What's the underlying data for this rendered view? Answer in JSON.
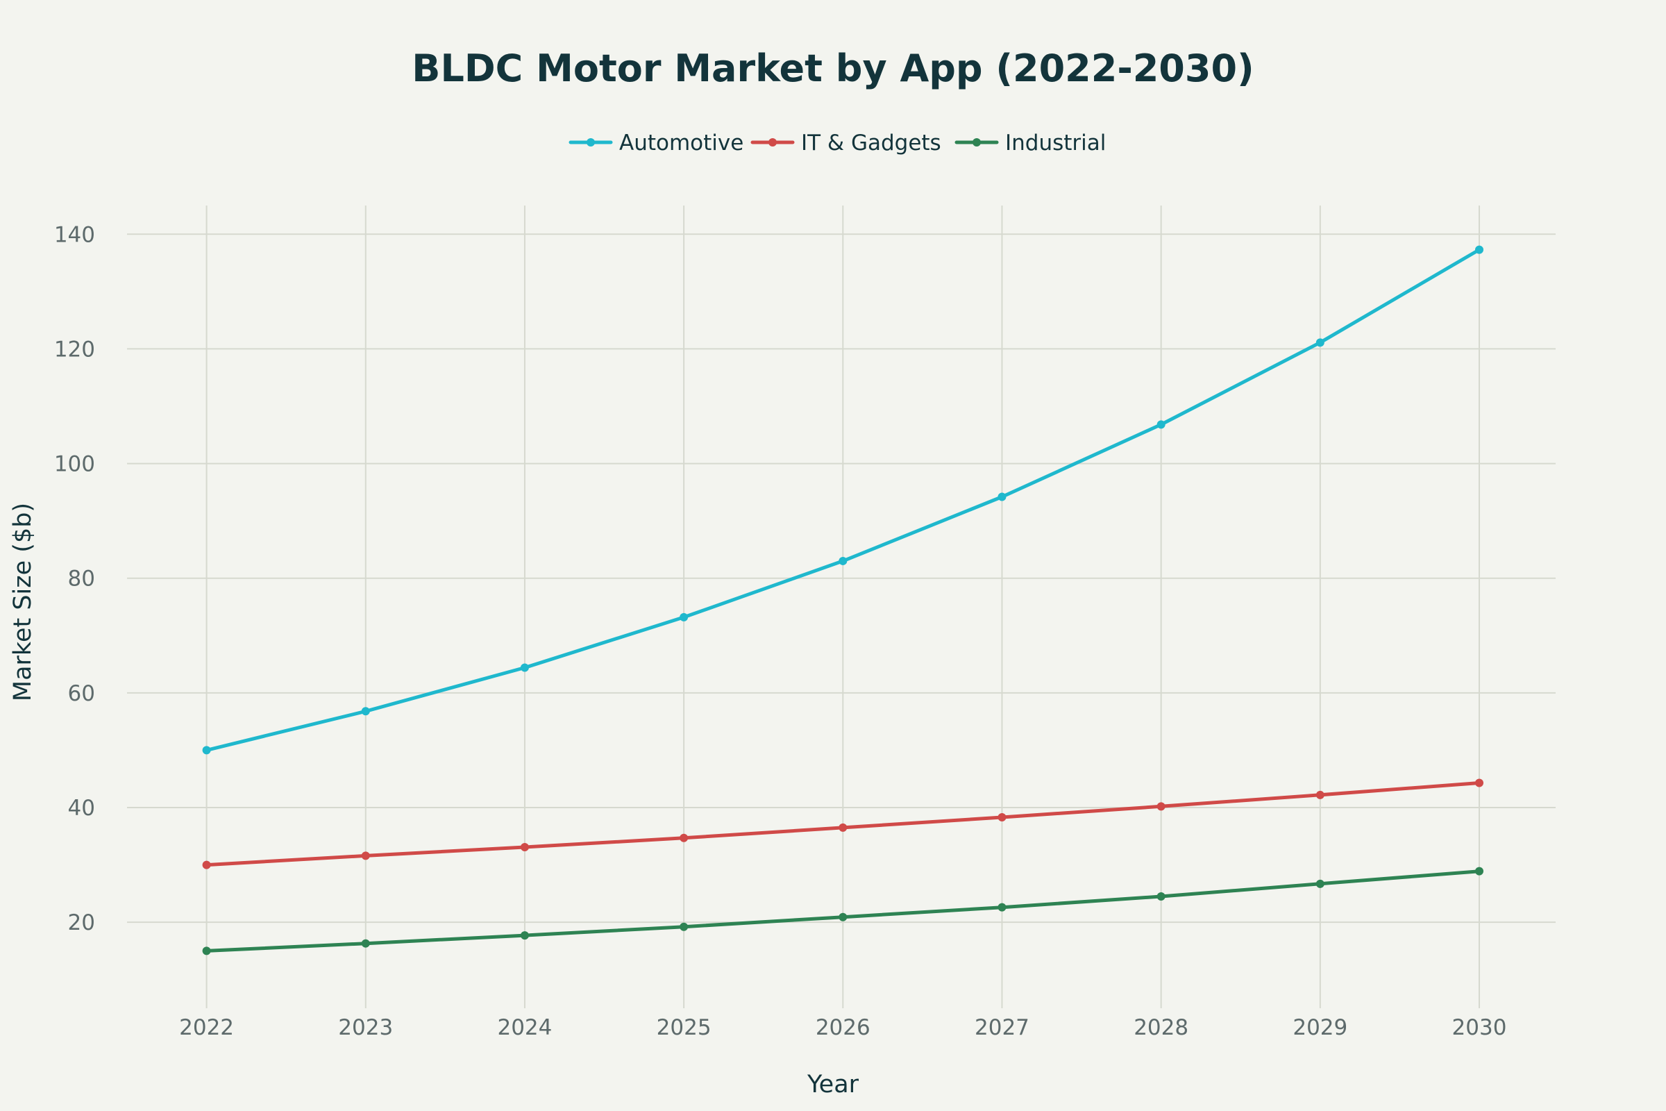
{
  "chart_data": {
    "type": "line",
    "title": "BLDC Motor Market by App (2022-2030)",
    "xlabel": "Year",
    "ylabel": "Market Size ($b)",
    "x": [
      2022,
      2023,
      2024,
      2025,
      2026,
      2027,
      2028,
      2029,
      2030
    ],
    "x_tick_labels": [
      "2022",
      "2023",
      "2024",
      "2025",
      "2026",
      "2027",
      "2028",
      "2029",
      "2030"
    ],
    "y_ticks": [
      20,
      40,
      60,
      80,
      100,
      120,
      140
    ],
    "ylim": [
      5,
      145
    ],
    "xlim": [
      2021.5,
      2030.48
    ],
    "grid": true,
    "legend_position": "top-center, horizontal",
    "series": [
      {
        "name": "Automotive",
        "color": "#1fb8cd",
        "values": [
          50.0,
          56.8,
          64.4,
          73.2,
          83.0,
          94.2,
          106.8,
          121.1,
          137.3
        ]
      },
      {
        "name": "IT & Gadgets",
        "color": "#d04a48",
        "values": [
          30.0,
          31.6,
          33.1,
          34.7,
          36.5,
          38.3,
          40.2,
          42.2,
          44.3
        ]
      },
      {
        "name": "Industrial",
        "color": "#2e8353",
        "values": [
          15.0,
          16.3,
          17.7,
          19.2,
          20.9,
          22.6,
          24.5,
          26.7,
          28.9
        ]
      }
    ]
  }
}
